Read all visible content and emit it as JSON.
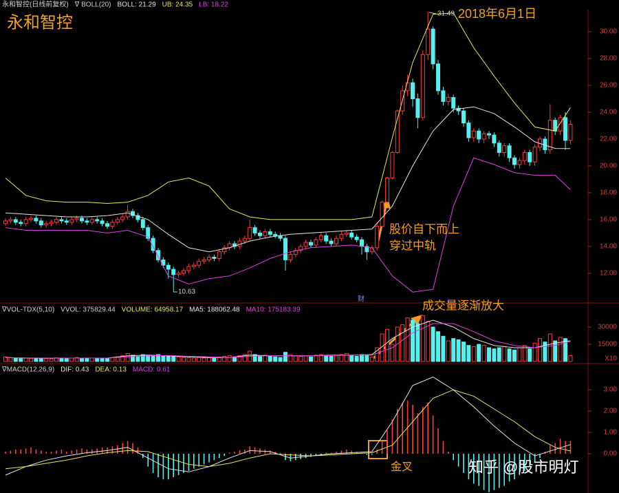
{
  "chart_data": [
    {
      "type": "candlestick",
      "title": "永和智控",
      "date_label": "2018年6月1日",
      "header": [
        {
          "text": "永和智控(日线前复权)",
          "color": "#d0d0d0"
        },
        {
          "text": "∇ BOLL(20)",
          "color": "#d0d0d0"
        }
      ],
      "max_label": "31.49",
      "min_label": "10.63",
      "annotation": [
        "股价自下而上",
        "穿过中轨"
      ],
      "event_markers": [
        "财"
      ],
      "up_color": "#ff3c3c",
      "down_color": "#54f0f0",
      "ylim": [
        10.3,
        31.85
      ],
      "yticks": [
        {
          "value": 30,
          "label": "30.00"
        },
        {
          "value": 28,
          "label": "28.00"
        },
        {
          "value": 26,
          "label": "26.00"
        },
        {
          "value": 24,
          "label": "24.00"
        },
        {
          "value": 22,
          "label": "22.00"
        },
        {
          "value": 20,
          "label": "20.00"
        },
        {
          "value": 18,
          "label": "18.00"
        },
        {
          "value": 16,
          "label": "16.00"
        },
        {
          "value": 14,
          "label": "14.00"
        },
        {
          "value": 12,
          "label": "12.00"
        }
      ],
      "open": [
        15.7,
        15.9,
        16.0,
        15.8,
        15.7,
        16.0,
        16.1,
        15.9,
        15.6,
        15.7,
        15.8,
        16.0,
        15.9,
        15.8,
        16.0,
        16.1,
        15.9,
        15.8,
        16.0,
        15.9,
        15.7,
        15.5,
        15.8,
        16.0,
        16.2,
        16.6,
        16.3,
        16.0,
        15.4,
        14.6,
        13.7,
        13.0,
        12.6,
        12.3,
        11.9,
        12.0,
        12.2,
        12.5,
        12.6,
        12.9,
        13.0,
        13.2,
        13.1,
        13.6,
        13.9,
        14.2,
        14.0,
        14.4,
        14.6,
        15.4,
        15.0,
        14.8,
        15.1,
        14.9,
        14.8,
        14.6,
        13.0,
        13.4,
        13.7,
        14.0,
        14.3,
        14.1,
        14.5,
        14.8,
        14.4,
        14.2,
        14.6,
        14.9,
        15.0,
        14.7,
        14.5,
        14.0,
        13.6,
        13.9,
        15.5,
        17.3,
        19.1,
        21.0,
        24.1,
        25.6,
        26.2,
        25.0,
        23.6,
        28.3,
        30.2,
        27.6,
        25.6,
        24.8,
        25.1,
        24.3,
        24.1,
        23.2,
        22.1,
        22.6,
        22.0,
        22.4,
        22.3,
        21.7,
        21.0,
        21.5,
        20.6,
        20.1,
        20.4,
        21.0,
        20.3,
        21.4,
        22.0,
        21.2,
        23.4,
        22.6,
        23.6,
        21.9
      ],
      "high": [
        16.1,
        16.2,
        16.2,
        16.0,
        16.2,
        16.3,
        16.3,
        16.1,
        15.9,
        16.0,
        16.2,
        16.2,
        16.1,
        16.2,
        16.3,
        16.3,
        16.1,
        16.2,
        16.2,
        16.1,
        15.9,
        16.0,
        16.2,
        16.4,
        17.1,
        16.8,
        16.5,
        16.2,
        15.6,
        14.8,
        13.9,
        13.2,
        12.8,
        12.5,
        12.2,
        12.4,
        12.7,
        12.8,
        13.1,
        13.2,
        13.4,
        13.4,
        13.8,
        14.1,
        14.4,
        14.4,
        14.6,
        14.8,
        16.0,
        15.6,
        15.2,
        15.3,
        15.3,
        15.1,
        15.0,
        14.8,
        13.6,
        13.9,
        14.2,
        14.5,
        14.5,
        14.7,
        15.0,
        15.0,
        14.6,
        14.8,
        15.1,
        15.2,
        15.2,
        14.9,
        14.7,
        14.2,
        14.1,
        15.8,
        17.4,
        19.2,
        21.1,
        24.2,
        26.0,
        26.8,
        26.5,
        25.4,
        28.6,
        31.49,
        30.4,
        27.9,
        25.9,
        25.4,
        25.3,
        24.5,
        24.3,
        23.4,
        22.8,
        22.8,
        22.6,
        22.6,
        22.5,
        21.9,
        21.7,
        21.7,
        20.8,
        20.6,
        21.2,
        21.2,
        21.6,
        22.2,
        22.2,
        24.6,
        23.6,
        23.8,
        24.0,
        23.4
      ],
      "low": [
        15.5,
        15.7,
        15.6,
        15.5,
        15.5,
        15.8,
        15.7,
        15.4,
        15.4,
        15.5,
        15.6,
        15.7,
        15.6,
        15.6,
        15.8,
        15.7,
        15.6,
        15.6,
        15.7,
        15.5,
        15.3,
        15.3,
        15.6,
        15.8,
        16.0,
        16.1,
        15.8,
        15.2,
        14.4,
        13.5,
        12.8,
        12.4,
        11.6,
        10.63,
        11.7,
        11.8,
        12.0,
        12.3,
        12.4,
        12.7,
        12.8,
        12.9,
        12.9,
        13.4,
        13.7,
        13.8,
        13.8,
        14.2,
        14.4,
        14.8,
        14.6,
        14.6,
        14.7,
        14.6,
        14.4,
        12.2,
        12.8,
        13.2,
        13.5,
        13.8,
        13.9,
        13.9,
        14.3,
        14.2,
        14.0,
        14.0,
        14.4,
        14.7,
        14.5,
        14.3,
        13.4,
        13.0,
        13.4,
        13.7,
        15.4,
        17.2,
        19.0,
        20.9,
        23.8,
        25.2,
        24.4,
        22.8,
        23.4,
        27.9,
        27.2,
        25.3,
        24.5,
        24.5,
        24.0,
        23.8,
        22.9,
        21.8,
        21.8,
        21.7,
        21.7,
        22.0,
        21.4,
        20.7,
        20.7,
        20.3,
        19.8,
        19.8,
        20.1,
        20.0,
        20.0,
        21.1,
        20.9,
        20.9,
        22.3,
        22.3,
        21.2,
        21.6
      ],
      "close": [
        15.9,
        16.0,
        15.8,
        15.7,
        16.0,
        16.1,
        15.9,
        15.6,
        15.7,
        15.8,
        16.0,
        15.9,
        15.8,
        16.0,
        16.1,
        15.9,
        15.8,
        16.0,
        15.9,
        15.7,
        15.5,
        15.8,
        16.0,
        16.2,
        16.6,
        16.3,
        16.0,
        15.4,
        14.6,
        13.7,
        13.0,
        12.6,
        12.3,
        11.9,
        12.0,
        12.2,
        12.5,
        12.6,
        12.9,
        13.0,
        13.2,
        13.1,
        13.6,
        13.9,
        14.2,
        14.0,
        14.4,
        14.6,
        15.4,
        15.0,
        14.8,
        15.1,
        14.9,
        14.8,
        14.6,
        13.0,
        13.4,
        13.7,
        14.0,
        14.3,
        14.1,
        14.5,
        14.8,
        14.4,
        14.2,
        14.6,
        14.9,
        15.0,
        14.7,
        14.5,
        14.0,
        13.6,
        13.9,
        15.5,
        17.3,
        19.1,
        21.0,
        24.1,
        25.6,
        26.2,
        25.0,
        23.6,
        28.3,
        30.2,
        27.6,
        25.6,
        24.8,
        25.1,
        24.3,
        24.1,
        23.2,
        22.1,
        22.6,
        22.0,
        22.4,
        22.3,
        21.7,
        21.0,
        21.5,
        20.6,
        20.1,
        20.4,
        21.0,
        20.3,
        21.4,
        22.0,
        21.2,
        23.4,
        22.6,
        23.6,
        21.9,
        23.1
      ],
      "line_x": [
        0,
        4,
        8,
        12,
        16,
        20,
        24,
        28,
        32,
        36,
        40,
        44,
        48,
        52,
        56,
        60,
        64,
        68,
        72,
        76,
        80,
        84,
        88,
        92,
        96,
        100,
        104,
        108,
        111
      ],
      "series": [
        {
          "name": "BOLL: 21.29",
          "color": "#e6e6e6",
          "values": [
            16.5,
            16.4,
            16.3,
            16.2,
            16.2,
            16.3,
            16.5,
            16.0,
            14.9,
            13.9,
            13.6,
            13.9,
            14.4,
            14.7,
            14.9,
            15.0,
            15.1,
            15.2,
            15.3,
            17.0,
            20.0,
            22.6,
            24.2,
            24.4,
            23.9,
            22.9,
            21.8,
            21.3,
            21.29
          ]
        },
        {
          "name": "UB: 24.35",
          "color": "#e8e85a",
          "values": [
            19.1,
            17.8,
            17.4,
            17.3,
            17.3,
            17.2,
            17.3,
            17.8,
            18.8,
            19.1,
            18.5,
            16.8,
            16.2,
            16.0,
            16.0,
            16.0,
            16.0,
            16.0,
            16.2,
            22.1,
            27.7,
            31.3,
            31.4,
            28.8,
            26.7,
            24.7,
            22.9,
            22.6,
            24.35
          ]
        },
        {
          "name": "LB: 18.22",
          "color": "#e040e0",
          "values": [
            15.4,
            15.2,
            15.2,
            15.2,
            15.2,
            15.0,
            15.2,
            14.7,
            11.8,
            11.2,
            11.6,
            11.8,
            12.4,
            13.1,
            13.6,
            13.9,
            14.0,
            14.1,
            13.9,
            11.8,
            10.6,
            10.8,
            17.0,
            20.6,
            20.1,
            19.5,
            19.3,
            19.3,
            18.22
          ]
        }
      ]
    },
    {
      "type": "volume",
      "header": [
        {
          "text": "∇VOL-TDX(5,10)",
          "color": "#d0d0d0"
        },
        {
          "text": "VVOL: 375829.44",
          "color": "#d0d0d0"
        },
        {
          "text": "VOLUME: 64958.17",
          "color": "#e8e85a"
        }
      ],
      "annotation": "成交量逐渐放大",
      "unit": "X10",
      "ylim": [
        0,
        48000
      ],
      "yticks": [
        30000,
        15000
      ],
      "values": [
        4000,
        3500,
        3000,
        2500,
        3000,
        2800,
        2600,
        3000,
        2500,
        2400,
        3200,
        2800,
        2500,
        3000,
        3500,
        2800,
        2500,
        3000,
        2600,
        2700,
        3000,
        3200,
        4000,
        5000,
        7000,
        5500,
        4000,
        6000,
        5500,
        5000,
        6000,
        5000,
        4500,
        5000,
        4000,
        3500,
        3500,
        3000,
        3500,
        3000,
        3200,
        2800,
        4000,
        4500,
        5000,
        4000,
        5000,
        6000,
        9000,
        6000,
        5000,
        5500,
        4500,
        4000,
        3500,
        8000,
        6000,
        5000,
        4500,
        5000,
        4000,
        5500,
        6000,
        5000,
        4500,
        5500,
        6000,
        7000,
        5000,
        4500,
        6000,
        5500,
        4000,
        12000,
        24000,
        28000,
        15000,
        30000,
        32000,
        38000,
        36000,
        33000,
        40000,
        35000,
        30000,
        26000,
        22000,
        18000,
        20000,
        19000,
        17000,
        14000,
        13000,
        15000,
        14000,
        12000,
        11000,
        12000,
        13000,
        11000,
        10000,
        12000,
        14000,
        11000,
        16000,
        20000,
        17000,
        24000,
        18000,
        21000,
        20000,
        5000
      ],
      "line_x": [
        0,
        4,
        8,
        12,
        16,
        20,
        24,
        28,
        32,
        36,
        40,
        44,
        48,
        52,
        56,
        60,
        64,
        68,
        72,
        76,
        80,
        84,
        88,
        92,
        96,
        100,
        104,
        108,
        111
      ],
      "series": [
        {
          "name": "MA5: 188062.48",
          "color": "#e6e6e6",
          "values": [
            3500,
            3000,
            2800,
            3000,
            3000,
            3000,
            5000,
            5500,
            5000,
            4000,
            3500,
            3500,
            5500,
            5000,
            5000,
            5000,
            5500,
            5500,
            6000,
            20000,
            30000,
            36000,
            30000,
            20000,
            14000,
            12000,
            12000,
            16000,
            18000
          ]
        },
        {
          "name": "MA10: 175183.39",
          "color": "#e040e0",
          "values": [
            3500,
            3200,
            3000,
            3000,
            3000,
            3000,
            4000,
            5000,
            5200,
            4500,
            4000,
            3500,
            4500,
            5000,
            5000,
            5000,
            5200,
            5500,
            5500,
            12000,
            25000,
            33000,
            33000,
            26000,
            18000,
            14000,
            12000,
            14000,
            17500
          ]
        }
      ]
    },
    {
      "type": "macd",
      "header": [
        {
          "text": "∇MACD(12,26,9)",
          "color": "#d0d0d0"
        }
      ],
      "annotation": "金叉",
      "watermark": "知乎 @股市明灯",
      "up_color": "#ff3c3c",
      "down_color": "#54f0f0",
      "bar_name": "MACD: 0.61",
      "bar_color": "#e040e0",
      "ylim": [
        -1.84,
        4.1
      ],
      "yticks": [
        {
          "value": 3,
          "label": "3.00"
        },
        {
          "value": 2,
          "label": "2.00"
        },
        {
          "value": 1,
          "label": "1.00"
        },
        {
          "value": 0,
          "label": "0.00"
        }
      ],
      "values": [
        0.1,
        0.15,
        0.2,
        0.2,
        0.25,
        0.3,
        0.2,
        0.15,
        0.1,
        0.1,
        0.15,
        0.2,
        0.1,
        0.15,
        0.2,
        0.25,
        0.2,
        0.2,
        0.25,
        0.3,
        0.3,
        0.35,
        0.4,
        0.5,
        0.6,
        0.5,
        0.3,
        -0.2,
        -0.6,
        -0.9,
        -1.1,
        -1.2,
        -1.2,
        -1.1,
        -1.0,
        -0.9,
        -0.8,
        -0.7,
        -0.6,
        -0.5,
        -0.4,
        -0.3,
        -0.2,
        -0.1,
        0.05,
        0.1,
        0.15,
        0.2,
        0.35,
        0.3,
        0.25,
        0.2,
        0.15,
        0.1,
        0.05,
        -0.3,
        -0.35,
        -0.3,
        -0.25,
        -0.2,
        -0.15,
        -0.1,
        -0.05,
        0.05,
        0.05,
        0.1,
        0.15,
        0.2,
        0.15,
        0.1,
        0.05,
        -0.05,
        -0.05,
        0.2,
        0.6,
        1.1,
        1.6,
        2.1,
        2.4,
        2.5,
        2.3,
        1.9,
        2.2,
        2.4,
        1.8,
        1.2,
        0.6,
        0.1,
        -0.3,
        -0.6,
        -0.9,
        -1.2,
        -1.4,
        -1.5,
        -1.7,
        -1.8,
        -1.7,
        -1.6,
        -1.5,
        -1.3,
        -1.2,
        -1.0,
        -0.8,
        -0.6,
        -0.4,
        -0.2,
        0.1,
        0.4,
        0.5,
        0.7,
        0.6,
        0.61
      ],
      "line_x": [
        0,
        4,
        8,
        12,
        16,
        20,
        24,
        28,
        32,
        36,
        40,
        44,
        48,
        52,
        56,
        60,
        64,
        68,
        72,
        76,
        80,
        84,
        88,
        92,
        96,
        100,
        104,
        108,
        111
      ],
      "series": [
        {
          "name": "DIF: 0.43",
          "color": "#e6e6e6",
          "values": [
            -1.0,
            -0.6,
            -0.3,
            -0.1,
            0.05,
            0.15,
            0.3,
            -0.2,
            -0.7,
            -0.85,
            -0.6,
            -0.2,
            0.15,
            0.1,
            -0.2,
            -0.1,
            0.0,
            0.05,
            0.1,
            1.5,
            3.2,
            3.6,
            3.0,
            2.2,
            1.3,
            0.5,
            -0.1,
            0.2,
            0.43
          ]
        },
        {
          "name": "DEA: 0.13",
          "color": "#e8e85a",
          "values": [
            -0.7,
            -0.6,
            -0.45,
            -0.3,
            -0.1,
            0.05,
            0.15,
            0.1,
            -0.2,
            -0.5,
            -0.6,
            -0.45,
            -0.2,
            0.0,
            -0.05,
            -0.1,
            -0.05,
            0.0,
            0.05,
            0.4,
            1.5,
            2.6,
            3.0,
            2.7,
            2.1,
            1.5,
            0.8,
            0.3,
            0.13
          ]
        }
      ]
    }
  ]
}
